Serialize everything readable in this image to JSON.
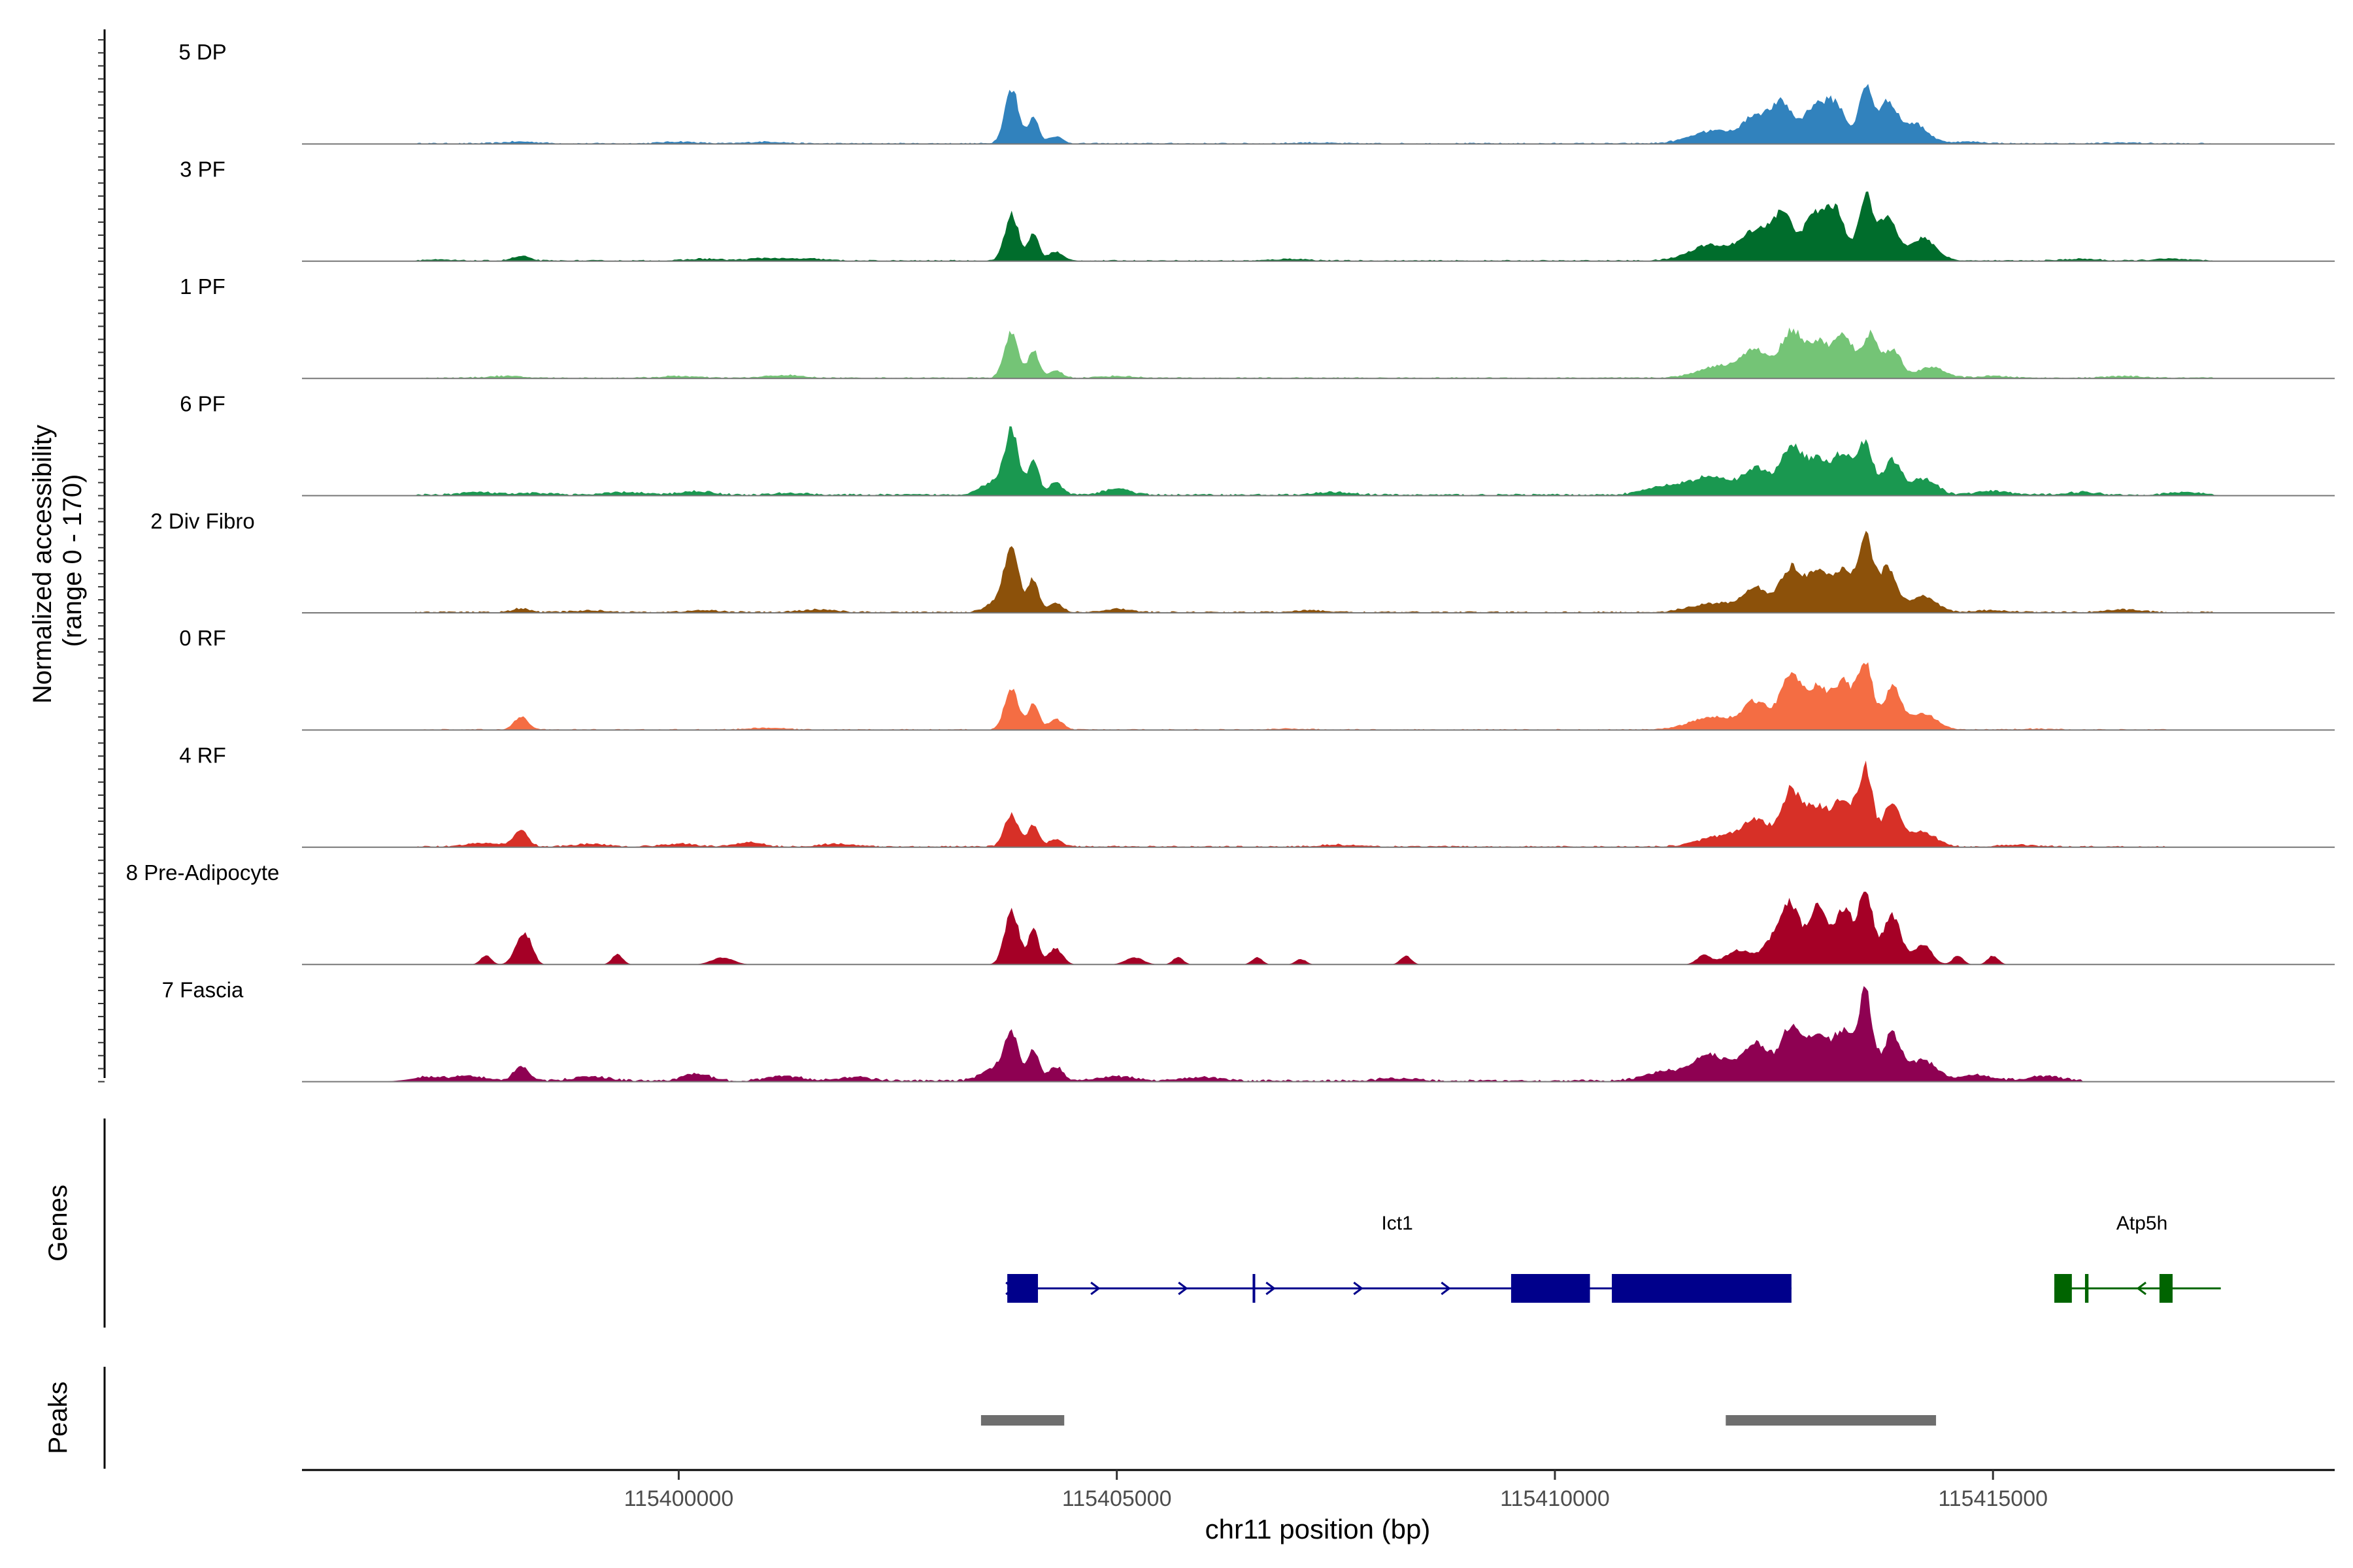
{
  "chart_data": {
    "type": "area",
    "title": "",
    "xlabel": "chr11 position (bp)",
    "ylabel_line1": "Normalized accessibility",
    "ylabel_line2": "(range 0 - 170)",
    "y_range": [
      0,
      170
    ],
    "x_range": [
      115395700,
      115418900
    ],
    "x_ticks": [
      115400000,
      115405000,
      115410000,
      115415000
    ],
    "x_tick_labels": [
      "115400000",
      "115405000",
      "115410000",
      "115415000"
    ],
    "tracks": [
      {
        "name": "5 DP",
        "color": "#3182bd",
        "peaks": [
          [
            115398200,
            2,
            200
          ],
          [
            115400000,
            2,
            200
          ],
          [
            115401000,
            2,
            200
          ],
          [
            115403800,
            62,
            80
          ],
          [
            115404050,
            30,
            60
          ],
          [
            115404300,
            8,
            80
          ],
          [
            115407200,
            1,
            200
          ],
          [
            115411800,
            14,
            250
          ],
          [
            115412300,
            30,
            150
          ],
          [
            115412600,
            42,
            120
          ],
          [
            115412950,
            38,
            120
          ],
          [
            115413200,
            44,
            120
          ],
          [
            115413550,
            62,
            80
          ],
          [
            115413800,
            45,
            100
          ],
          [
            115414100,
            22,
            150
          ],
          [
            115414700,
            2,
            200
          ],
          [
            115416500,
            1,
            200
          ]
        ],
        "noise_from": 115397000,
        "noise_to": 115417500,
        "noise_amp": 1.5
      },
      {
        "name": "3 PF",
        "color": "#006d2c",
        "peaks": [
          [
            115397200,
            1,
            200
          ],
          [
            115398200,
            5,
            100
          ],
          [
            115400300,
            2,
            200
          ],
          [
            115401000,
            3,
            200
          ],
          [
            115401500,
            2,
            200
          ],
          [
            115403800,
            52,
            80
          ],
          [
            115404050,
            30,
            60
          ],
          [
            115404300,
            10,
            80
          ],
          [
            115407000,
            2,
            200
          ],
          [
            115411800,
            18,
            250
          ],
          [
            115412300,
            32,
            150
          ],
          [
            115412600,
            50,
            120
          ],
          [
            115412950,
            46,
            120
          ],
          [
            115413200,
            55,
            120
          ],
          [
            115413550,
            70,
            80
          ],
          [
            115413800,
            52,
            100
          ],
          [
            115414200,
            25,
            150
          ],
          [
            115416000,
            2,
            200
          ],
          [
            115417000,
            2,
            200
          ]
        ],
        "noise_from": 115397000,
        "noise_to": 115417500,
        "noise_amp": 1.5
      },
      {
        "name": "1 PF",
        "color": "#74c476",
        "peaks": [
          [
            115398000,
            2,
            200
          ],
          [
            115400000,
            2,
            200
          ],
          [
            115401200,
            3,
            200
          ],
          [
            115403800,
            52,
            80
          ],
          [
            115404050,
            30,
            60
          ],
          [
            115404300,
            8,
            80
          ],
          [
            115405000,
            2,
            200
          ],
          [
            115411900,
            14,
            250
          ],
          [
            115412300,
            28,
            150
          ],
          [
            115412700,
            52,
            120
          ],
          [
            115413000,
            38,
            120
          ],
          [
            115413300,
            46,
            120
          ],
          [
            115413600,
            48,
            80
          ],
          [
            115413850,
            32,
            100
          ],
          [
            115414300,
            12,
            150
          ],
          [
            115415000,
            2,
            200
          ],
          [
            115416500,
            2,
            200
          ]
        ],
        "noise_from": 115397000,
        "noise_to": 115417500,
        "noise_amp": 1.5
      },
      {
        "name": "6 PF",
        "color": "#1a9850",
        "peaks": [
          [
            115397700,
            3,
            200
          ],
          [
            115398400,
            2,
            200
          ],
          [
            115399400,
            3,
            200
          ],
          [
            115400200,
            4,
            200
          ],
          [
            115401300,
            2,
            200
          ],
          [
            115403600,
            15,
            150
          ],
          [
            115403800,
            68,
            80
          ],
          [
            115404050,
            40,
            60
          ],
          [
            115404300,
            14,
            80
          ],
          [
            115405000,
            7,
            150
          ],
          [
            115407500,
            3,
            200
          ],
          [
            115411300,
            10,
            250
          ],
          [
            115411800,
            20,
            200
          ],
          [
            115412300,
            30,
            150
          ],
          [
            115412700,
            55,
            120
          ],
          [
            115413000,
            38,
            120
          ],
          [
            115413300,
            46,
            120
          ],
          [
            115413550,
            55,
            80
          ],
          [
            115413850,
            38,
            100
          ],
          [
            115414200,
            18,
            150
          ],
          [
            115415000,
            4,
            200
          ],
          [
            115416000,
            3,
            200
          ],
          [
            115417200,
            3,
            200
          ]
        ],
        "noise_from": 115397000,
        "noise_to": 115417500,
        "noise_amp": 2.2
      },
      {
        "name": "2 Div Fibro",
        "color": "#8c510a",
        "peaks": [
          [
            115398200,
            4,
            100
          ],
          [
            115399000,
            2,
            200
          ],
          [
            115400300,
            2,
            200
          ],
          [
            115401600,
            3,
            200
          ],
          [
            115403700,
            15,
            150
          ],
          [
            115403800,
            62,
            80
          ],
          [
            115404050,
            36,
            60
          ],
          [
            115404300,
            10,
            80
          ],
          [
            115405000,
            4,
            150
          ],
          [
            115407200,
            2,
            200
          ],
          [
            115411800,
            10,
            250
          ],
          [
            115412300,
            26,
            150
          ],
          [
            115412700,
            50,
            120
          ],
          [
            115413000,
            42,
            120
          ],
          [
            115413300,
            46,
            120
          ],
          [
            115413550,
            82,
            80
          ],
          [
            115413800,
            50,
            100
          ],
          [
            115414200,
            18,
            150
          ],
          [
            115415000,
            2,
            200
          ],
          [
            115416500,
            3,
            200
          ]
        ],
        "noise_from": 115397000,
        "noise_to": 115417500,
        "noise_amp": 1.8
      },
      {
        "name": "0 RF",
        "color": "#f46d43",
        "peaks": [
          [
            115398200,
            15,
            80
          ],
          [
            115401000,
            2,
            200
          ],
          [
            115403800,
            46,
            80
          ],
          [
            115404050,
            30,
            60
          ],
          [
            115404300,
            12,
            80
          ],
          [
            115407000,
            1,
            200
          ],
          [
            115411800,
            14,
            250
          ],
          [
            115412300,
            30,
            150
          ],
          [
            115412700,
            62,
            120
          ],
          [
            115413000,
            44,
            120
          ],
          [
            115413300,
            52,
            120
          ],
          [
            115413550,
            72,
            80
          ],
          [
            115413850,
            46,
            100
          ],
          [
            115414200,
            18,
            150
          ],
          [
            115415500,
            1,
            200
          ]
        ],
        "noise_from": 115397000,
        "noise_to": 115417000,
        "noise_amp": 1.2
      },
      {
        "name": "4 RF",
        "color": "#d73027",
        "peaks": [
          [
            115397800,
            4,
            200
          ],
          [
            115398200,
            18,
            80
          ],
          [
            115399000,
            3,
            200
          ],
          [
            115400000,
            3,
            200
          ],
          [
            115400800,
            5,
            150
          ],
          [
            115401800,
            3,
            200
          ],
          [
            115403800,
            36,
            80
          ],
          [
            115404050,
            24,
            60
          ],
          [
            115404300,
            8,
            80
          ],
          [
            115407500,
            2,
            200
          ],
          [
            115411900,
            12,
            250
          ],
          [
            115412300,
            28,
            150
          ],
          [
            115412700,
            62,
            120
          ],
          [
            115413000,
            42,
            120
          ],
          [
            115413300,
            52,
            120
          ],
          [
            115413550,
            82,
            80
          ],
          [
            115413850,
            48,
            100
          ],
          [
            115414200,
            16,
            150
          ],
          [
            115415300,
            2,
            200
          ]
        ],
        "noise_from": 115397000,
        "noise_to": 115417000,
        "noise_amp": 1.8
      },
      {
        "name": "8 Pre-Adipocyte",
        "color": "#a50026",
        "peaks": [
          [
            115397800,
            10,
            60
          ],
          [
            115398200,
            28,
            80
          ],
          [
            115398300,
            16,
            60
          ],
          [
            115399300,
            12,
            60
          ],
          [
            115400500,
            8,
            120
          ],
          [
            115403800,
            62,
            80
          ],
          [
            115404050,
            40,
            60
          ],
          [
            115404300,
            18,
            80
          ],
          [
            115405200,
            8,
            100
          ],
          [
            115405700,
            8,
            60
          ],
          [
            115406600,
            8,
            60
          ],
          [
            115407100,
            6,
            60
          ],
          [
            115408300,
            10,
            60
          ],
          [
            115411700,
            10,
            80
          ],
          [
            115412100,
            16,
            150
          ],
          [
            115412500,
            28,
            120
          ],
          [
            115412700,
            62,
            100
          ],
          [
            115413000,
            70,
            100
          ],
          [
            115413300,
            62,
            100
          ],
          [
            115413550,
            82,
            80
          ],
          [
            115413850,
            55,
            100
          ],
          [
            115414200,
            22,
            100
          ],
          [
            115414600,
            10,
            60
          ],
          [
            115415000,
            10,
            60
          ]
        ],
        "noise_from": 115398000,
        "noise_to": 115415100,
        "noise_amp": 0.0
      },
      {
        "name": "7 Fascia",
        "color": "#8e0152",
        "peaks": [
          [
            115397100,
            4,
            200
          ],
          [
            115397600,
            5,
            200
          ],
          [
            115398200,
            16,
            80
          ],
          [
            115399000,
            5,
            200
          ],
          [
            115400200,
            8,
            150
          ],
          [
            115401200,
            5,
            200
          ],
          [
            115402000,
            4,
            200
          ],
          [
            115403600,
            14,
            150
          ],
          [
            115403800,
            52,
            80
          ],
          [
            115404050,
            36,
            60
          ],
          [
            115404300,
            16,
            80
          ],
          [
            115405000,
            5,
            200
          ],
          [
            115406000,
            4,
            200
          ],
          [
            115408200,
            3,
            200
          ],
          [
            115411300,
            10,
            250
          ],
          [
            115411800,
            28,
            200
          ],
          [
            115412300,
            42,
            150
          ],
          [
            115412700,
            58,
            120
          ],
          [
            115413000,
            48,
            120
          ],
          [
            115413300,
            54,
            120
          ],
          [
            115413550,
            92,
            80
          ],
          [
            115413850,
            52,
            100
          ],
          [
            115414200,
            24,
            150
          ],
          [
            115414800,
            6,
            200
          ],
          [
            115415600,
            5,
            200
          ]
        ],
        "noise_from": 115397000,
        "noise_to": 115416000,
        "noise_amp": 2.5
      }
    ],
    "genes": {
      "label": "Genes",
      "items": [
        {
          "name": "Ict1",
          "color": "#00008b",
          "strand": "+",
          "start": 115403750,
          "end": 115412700,
          "exons": [
            [
              115403750,
              115404100
            ],
            [
              115406550,
              115406580
            ],
            [
              115409500,
              115410400
            ],
            [
              115410650,
              115412700
            ]
          ],
          "arrows": [
            115403780,
            115404750,
            115405750,
            115406750,
            115407750,
            115408750
          ]
        },
        {
          "name": "Atp5h",
          "color": "#006400",
          "strand": "-",
          "start": 115415700,
          "end": 115417600,
          "exons": [
            [
              115415700,
              115415900
            ],
            [
              115416050,
              115416090
            ],
            [
              115416900,
              115417050
            ]
          ],
          "arrows": [
            115416700
          ]
        }
      ]
    },
    "peaks_track": {
      "label": "Peaks",
      "color": "#6e6e6e",
      "regions": [
        [
          115403450,
          115404400
        ],
        [
          115411950,
          115414350
        ]
      ]
    }
  }
}
